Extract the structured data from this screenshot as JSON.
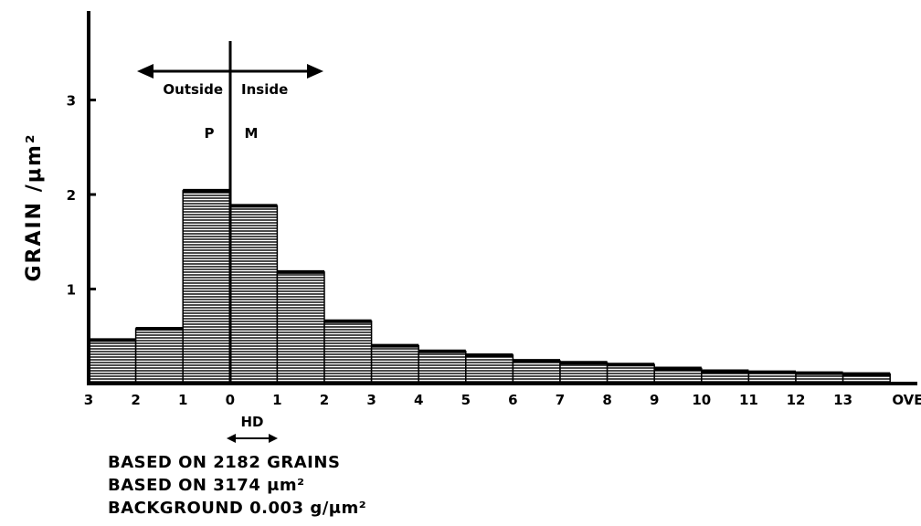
{
  "chart_data": {
    "type": "bar",
    "title": "",
    "ylabel": "GRAIN /μm²",
    "xlabel": "",
    "ylim": [
      0,
      3.6
    ],
    "yticks": [
      "1",
      "2",
      "3"
    ],
    "grid": false,
    "categories": [
      "3",
      "2",
      "1",
      "0",
      "1",
      "2",
      "3",
      "4",
      "5",
      "6",
      "7",
      "8",
      "9",
      "10",
      "11",
      "12",
      "13",
      "OVER"
    ],
    "values": [
      0.46,
      0.58,
      2.04,
      1.88,
      1.18,
      0.66,
      0.4,
      0.34,
      0.3,
      0.24,
      0.22,
      0.2,
      0.16,
      0.13,
      0.12,
      0.11,
      0.1,
      0.0
    ],
    "annotations": {
      "outside": "Outside",
      "inside": "Inside",
      "p": "P",
      "m": "M",
      "hd": "HD"
    }
  },
  "notes": {
    "grains": "BASED ON 2182 GRAINS",
    "area": "BASED ON 3174  μm²",
    "background": "BACKGROUND 0.003 g/μm²"
  }
}
